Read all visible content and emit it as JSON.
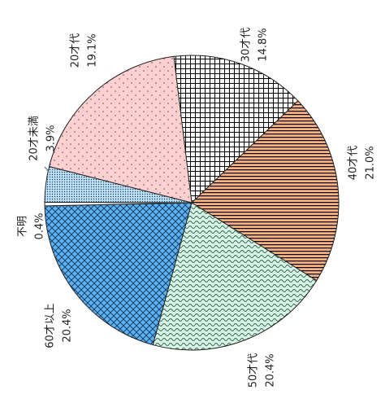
{
  "chart_data": {
    "type": "pie",
    "categories": [
      "30才代",
      "40才代",
      "50才代",
      "60才以上",
      "不明",
      "20才未満",
      "20才代"
    ],
    "values": [
      14.8,
      21.0,
      20.4,
      20.4,
      0.4,
      3.9,
      19.1
    ],
    "value_labels": [
      "14.8%",
      "21.0%",
      "20.4%",
      "20.4%",
      "0.4%",
      "3.9%",
      "19.1%"
    ],
    "colors": [
      "#ffffff",
      "#f4b183",
      "#d9f2e6",
      "#5bb4f0",
      "#ffffff",
      "#bfe3f5",
      "#ffd0d0"
    ]
  }
}
